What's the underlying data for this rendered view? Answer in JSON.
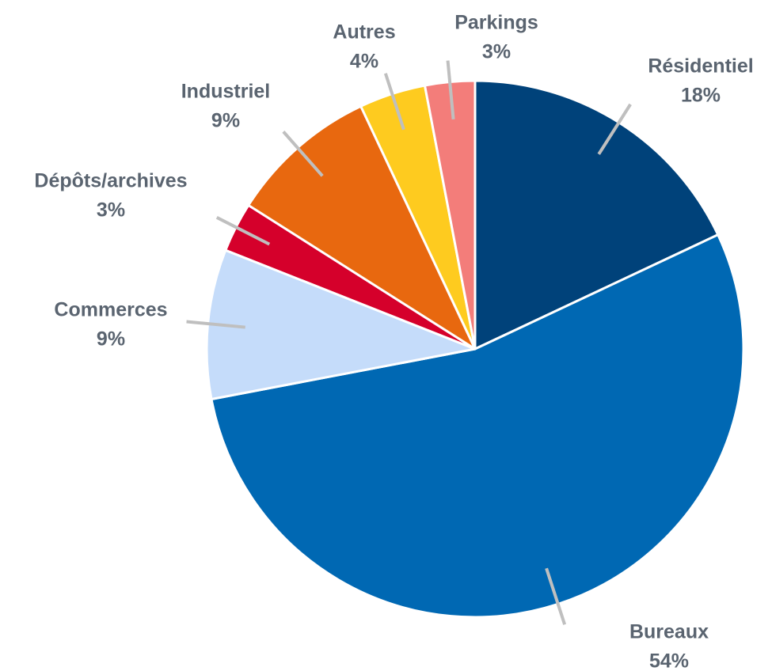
{
  "chart_data": {
    "type": "pie",
    "categories": [
      "Résidentiel",
      "Bureaux",
      "Commerces",
      "Dépôts/archives",
      "Industriel",
      "Autres",
      "Parkings"
    ],
    "values": [
      18,
      54,
      9,
      3,
      9,
      4,
      3
    ],
    "value_labels": [
      "18%",
      "54%",
      "9%",
      "3%",
      "9%",
      "4%",
      "3%"
    ],
    "colors": [
      "#00427a",
      "#0068b3",
      "#c5dcfa",
      "#d5002b",
      "#e8680f",
      "#fecb1f",
      "#f37d7a"
    ]
  }
}
